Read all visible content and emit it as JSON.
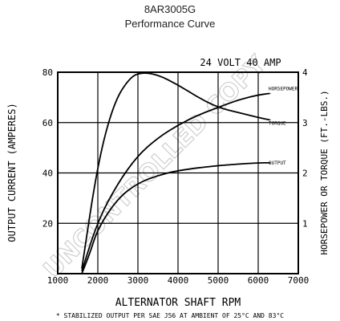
{
  "chart_data": {
    "type": "line",
    "title": "8AR3005G",
    "subtitle": "Performance Curve",
    "rating_label": "24 VOLT 40 AMP",
    "xlabel": "ALTERNATOR SHAFT RPM",
    "ylabel_left": "OUTPUT CURRENT (AMPERES)",
    "ylabel_right": "HORSEPOWER OR TORQUE (FT.-LBS.)",
    "footnote": "* STABILIZED OUTPUT PER SAE J56 AT AMBIENT OF 25°C AND 83°C",
    "watermark": "UNCONTROLLED COPY",
    "xlim": [
      1000,
      7000
    ],
    "ylim_left": [
      0,
      80
    ],
    "ylim_right": [
      0,
      4
    ],
    "x_ticks": [
      "1000",
      "2000",
      "3000",
      "4000",
      "5000",
      "6000",
      "7000"
    ],
    "y_left_ticks": [
      "20",
      "40",
      "60",
      "80"
    ],
    "y_right_ticks": [
      "1",
      "2",
      "3",
      "4"
    ],
    "series": [
      {
        "name": "HORSEPOWER",
        "axis": "right",
        "values": [
          [
            1600,
            0.05
          ],
          [
            2000,
            1.05
          ],
          [
            2500,
            1.8
          ],
          [
            3000,
            2.35
          ],
          [
            3500,
            2.7
          ],
          [
            4000,
            2.95
          ],
          [
            4500,
            3.15
          ],
          [
            5000,
            3.3
          ],
          [
            5500,
            3.45
          ],
          [
            6000,
            3.55
          ],
          [
            6300,
            3.58
          ]
        ]
      },
      {
        "name": "TORQUE",
        "axis": "right",
        "values": [
          [
            1600,
            0.1
          ],
          [
            2000,
            2.2
          ],
          [
            2400,
            3.4
          ],
          [
            2800,
            3.9
          ],
          [
            3100,
            4.0
          ],
          [
            3500,
            3.95
          ],
          [
            4000,
            3.75
          ],
          [
            4500,
            3.5
          ],
          [
            5000,
            3.3
          ],
          [
            5500,
            3.2
          ],
          [
            6000,
            3.1
          ],
          [
            6300,
            3.05
          ]
        ]
      },
      {
        "name": "OUTPUT",
        "axis": "left",
        "values": [
          [
            1600,
            0
          ],
          [
            1800,
            8
          ],
          [
            2000,
            18
          ],
          [
            2500,
            30
          ],
          [
            3000,
            36
          ],
          [
            3500,
            39
          ],
          [
            4000,
            41
          ],
          [
            5000,
            43
          ],
          [
            6000,
            44
          ],
          [
            6300,
            44
          ]
        ]
      }
    ]
  }
}
